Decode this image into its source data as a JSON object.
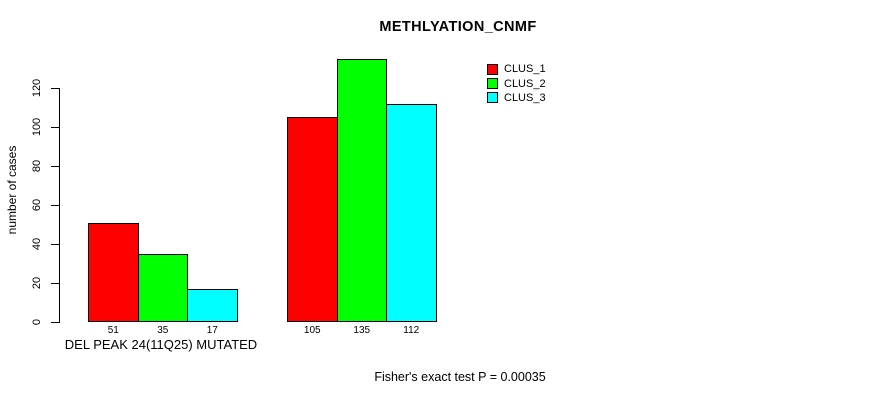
{
  "chart_data": {
    "type": "bar",
    "title": "METHLYATION_CNMF",
    "ylabel": "number of cases",
    "xlabel": "DEL PEAK 24(11Q25) MUTATED",
    "annotation": "Fisher's exact test P = 0.00035",
    "ylim": [
      0,
      120
    ],
    "yticks": [
      0,
      20,
      40,
      60,
      80,
      100,
      120
    ],
    "grid": false,
    "legend": {
      "position": "top-right",
      "entries": [
        {
          "label": "CLUS_1",
          "color": "#FF0000"
        },
        {
          "label": "CLUS_2",
          "color": "#00FF00"
        },
        {
          "label": "CLUS_3",
          "color": "#00FFFF"
        }
      ]
    },
    "groups": [
      {
        "bar_labels": [
          "51",
          "35",
          "17"
        ],
        "values": [
          51,
          35,
          17
        ]
      },
      {
        "bar_labels": [
          "105",
          "135",
          "112"
        ],
        "values": [
          105,
          135,
          112
        ]
      }
    ],
    "bar_border_color": "#000000",
    "background_color": "#FFFFFF"
  }
}
